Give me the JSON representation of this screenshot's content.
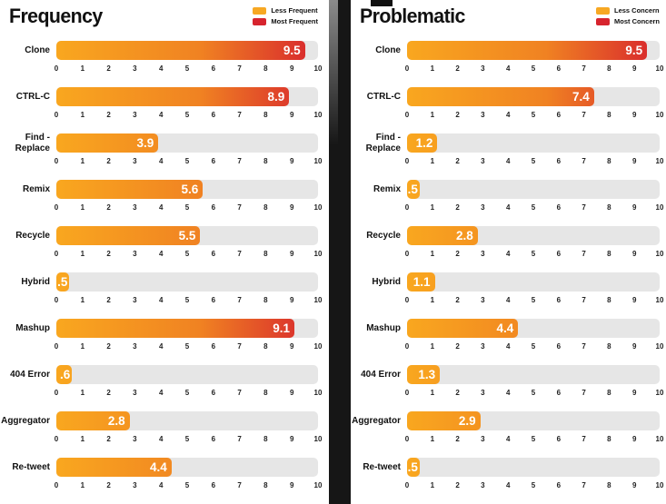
{
  "colors": {
    "bar_gradient_start": "#F9A71F",
    "bar_gradient_mid": "#F08222",
    "bar_gradient_end": "#D7242E",
    "legend_less": "#F7A823",
    "legend_most": "#D7242E",
    "track": "#E6E6E6",
    "gutter": "#161616",
    "text": "#111111"
  },
  "axis_ticks": [
    "0",
    "1",
    "2",
    "3",
    "4",
    "5",
    "6",
    "7",
    "8",
    "9",
    "10"
  ],
  "chart_data": [
    {
      "type": "bar",
      "orientation": "horizontal",
      "title": "Frequency",
      "legend": [
        {
          "label": "Less Frequent",
          "color": "#F7A823"
        },
        {
          "label": "Most Frequent",
          "color": "#D7242E"
        }
      ],
      "categories": [
        "Clone",
        "CTRL-C",
        "Find - Replace",
        "Remix",
        "Recycle",
        "Hybrid",
        "Mashup",
        "404 Error",
        "Aggregator",
        "Re-tweet"
      ],
      "values": [
        9.5,
        8.9,
        3.9,
        5.6,
        5.5,
        0.5,
        9.1,
        0.6,
        2.8,
        4.4
      ],
      "value_labels": [
        "9.5",
        "8.9",
        "3.9",
        "5.6",
        "5.5",
        ".5",
        "9.1",
        ".6",
        "2.8",
        "4.4"
      ],
      "xlim": [
        0,
        10
      ],
      "grid": false,
      "legend_position": "top-right"
    },
    {
      "type": "bar",
      "orientation": "horizontal",
      "title": "Problematic",
      "legend": [
        {
          "label": "Less Concern",
          "color": "#F7A823"
        },
        {
          "label": "Most Concern",
          "color": "#D7242E"
        }
      ],
      "categories": [
        "Clone",
        "CTRL-C",
        "Find - Replace",
        "Remix",
        "Recycle",
        "Hybrid",
        "Mashup",
        "404 Error",
        "Aggregator",
        "Re-tweet"
      ],
      "values": [
        9.5,
        7.4,
        1.2,
        0.5,
        2.8,
        1.1,
        4.4,
        1.3,
        2.9,
        0.5
      ],
      "value_labels": [
        "9.5",
        "7.4",
        "1.2",
        ".5",
        "2.8",
        "1.1",
        "4.4",
        "1.3",
        "2.9",
        ".5"
      ],
      "xlim": [
        0,
        10
      ],
      "grid": false,
      "legend_position": "top-right"
    }
  ]
}
